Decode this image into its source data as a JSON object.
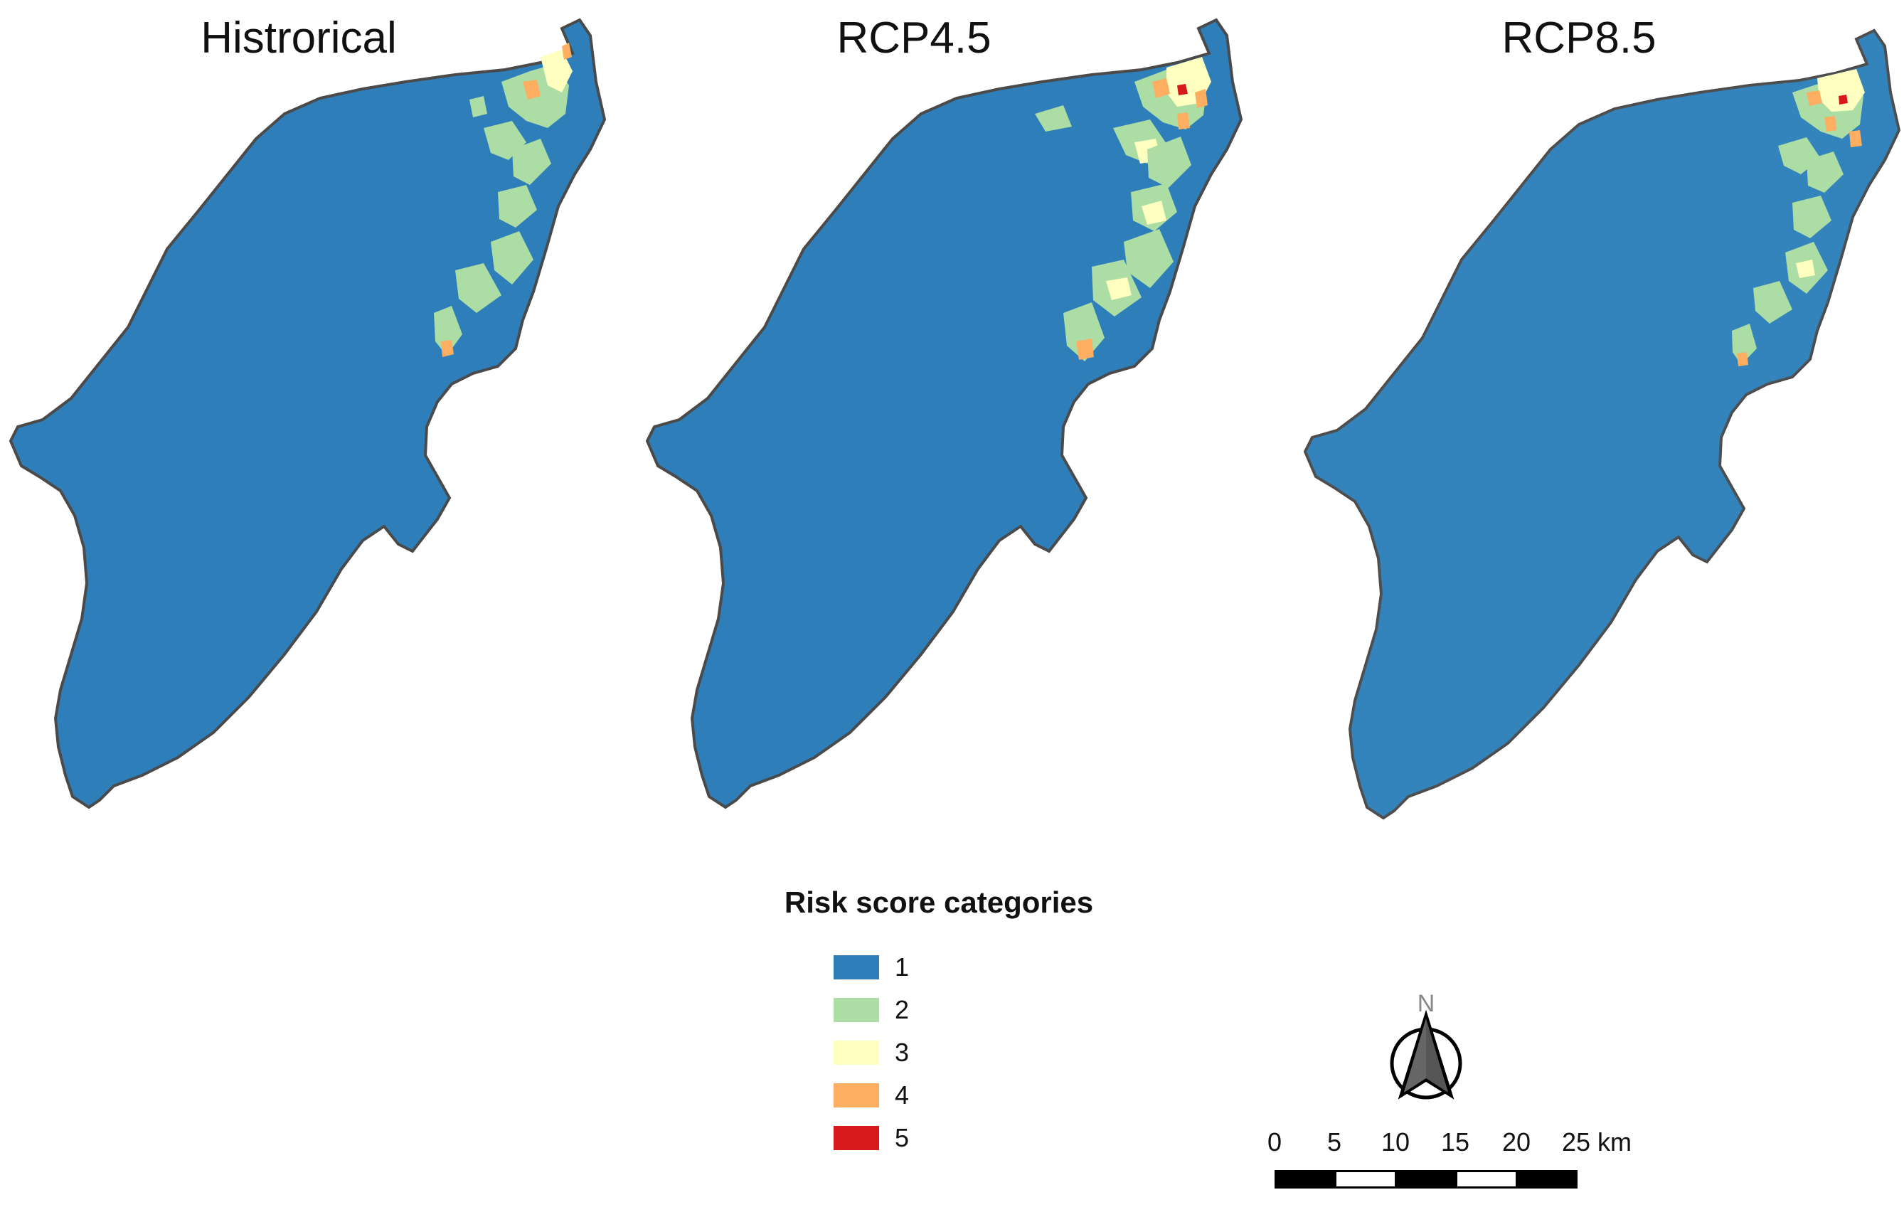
{
  "panels": [
    {
      "title": "Histrorical",
      "has_speckle": false
    },
    {
      "title": "RCP4.5",
      "has_speckle": false
    },
    {
      "title": "RCP8.5",
      "has_speckle": true
    }
  ],
  "legend": {
    "title": "Risk score categories",
    "items": [
      {
        "label": "1",
        "color": "#2e7fb9"
      },
      {
        "label": "2",
        "color": "#abdda4"
      },
      {
        "label": "3",
        "color": "#ffffbf"
      },
      {
        "label": "4",
        "color": "#fdae61"
      },
      {
        "label": "5",
        "color": "#d7191c"
      }
    ]
  },
  "north_arrow": {
    "letter": "N",
    "icon": "north-arrow-icon"
  },
  "scale_bar": {
    "ticks": [
      "0",
      "5",
      "10",
      "15",
      "20",
      "25"
    ],
    "unit": "km"
  },
  "colors": {
    "coastline": "#4a4a4a",
    "base": "#2e7fb9"
  }
}
